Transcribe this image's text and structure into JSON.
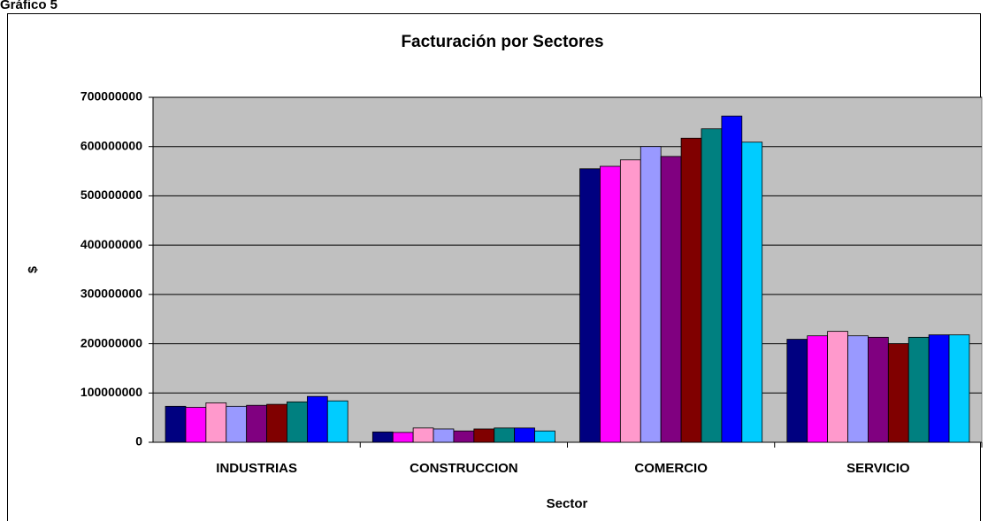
{
  "caption": "Gráfico 5",
  "chart_data": {
    "type": "bar",
    "title": "Facturación por Sectores",
    "x_label": "Sector",
    "y_label": "$",
    "categories": [
      "INDUSTRIAS",
      "CONSTRUCCION",
      "COMERCIO",
      "SERVICIO"
    ],
    "series": [
      {
        "color": "#000080",
        "values": [
          73000000,
          21000000,
          555000000,
          209000000
        ]
      },
      {
        "color": "#ff00ff",
        "values": [
          71000000,
          20000000,
          560000000,
          216000000
        ]
      },
      {
        "color": "#ff99cc",
        "values": [
          80000000,
          29000000,
          573000000,
          225000000
        ]
      },
      {
        "color": "#9999ff",
        "values": [
          73000000,
          27000000,
          600000000,
          216000000
        ]
      },
      {
        "color": "#800080",
        "values": [
          75000000,
          23000000,
          580000000,
          213000000
        ]
      },
      {
        "color": "#800000",
        "values": [
          77000000,
          27000000,
          617000000,
          200000000
        ]
      },
      {
        "color": "#008080",
        "values": [
          82000000,
          29000000,
          636000000,
          213000000
        ]
      },
      {
        "color": "#0000ff",
        "values": [
          93000000,
          29000000,
          662000000,
          218000000
        ]
      },
      {
        "color": "#00ccff",
        "values": [
          84000000,
          23000000,
          609000000,
          218000000
        ]
      }
    ],
    "ylim": [
      0,
      700000000
    ],
    "yticks": [
      0,
      100000000,
      200000000,
      300000000,
      400000000,
      500000000,
      600000000,
      700000000
    ],
    "grid": true,
    "plot_background": "#c0c0c0"
  }
}
